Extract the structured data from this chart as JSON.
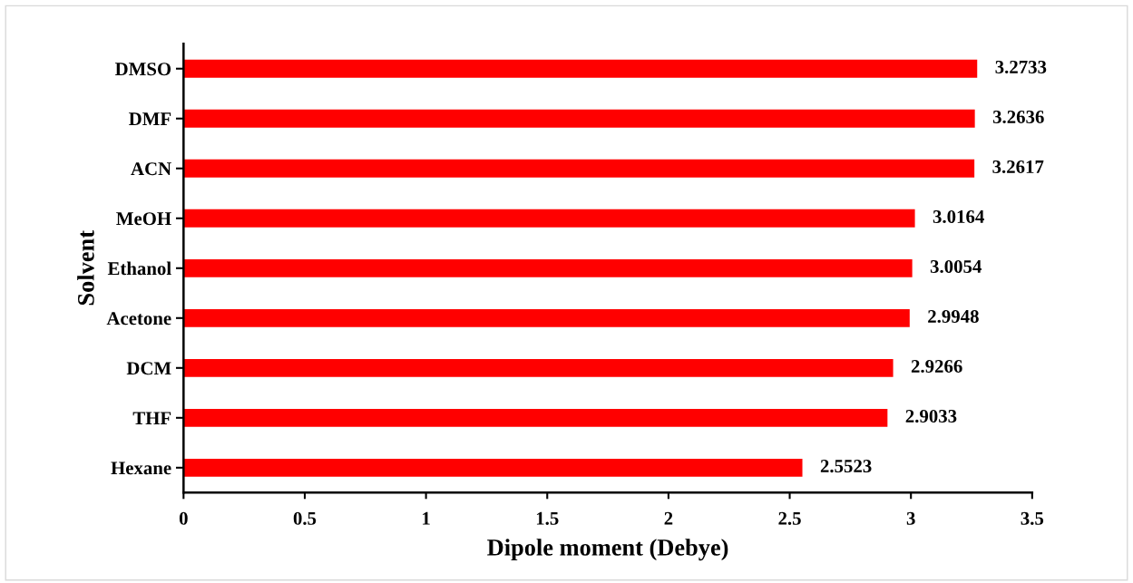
{
  "chart_data": {
    "type": "bar",
    "orientation": "horizontal",
    "xlabel": "Dipole moment (Debye)",
    "ylabel": "Solvent",
    "categories": [
      "DMSO",
      "DMF",
      "ACN",
      "MeOH",
      "Ethanol",
      "Acetone",
      "DCM",
      "THF",
      "Hexane"
    ],
    "values": [
      3.2733,
      3.2636,
      3.2617,
      3.0164,
      3.0054,
      2.9948,
      2.9266,
      2.9033,
      2.5523
    ],
    "color": "#ff0000",
    "data_labels": true,
    "xlim": [
      0,
      3.5
    ],
    "xticks": [
      0,
      0.5,
      1,
      1.5,
      2,
      2.5,
      3,
      3.5
    ],
    "grid": false,
    "legend": false
  }
}
